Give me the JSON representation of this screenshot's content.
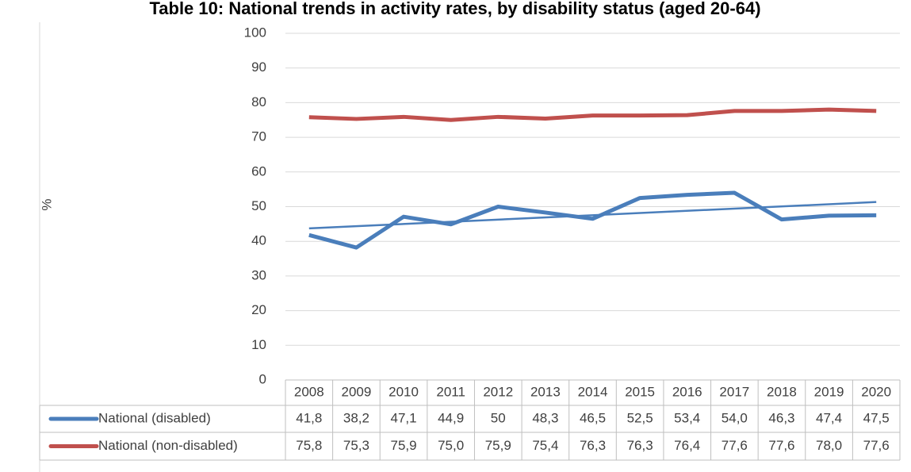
{
  "chart_data": {
    "type": "line",
    "title": "Table 10: National trends in activity rates, by disability status (aged 20-64)",
    "y_label": "%",
    "categories": [
      "2008",
      "2009",
      "2010",
      "2011",
      "2012",
      "2013",
      "2014",
      "2015",
      "2016",
      "2017",
      "2018",
      "2019",
      "2020"
    ],
    "series": [
      {
        "name": "National (disabled)",
        "color": "#4a7ebb",
        "trendline": true,
        "values": [
          41.8,
          38.2,
          47.1,
          44.9,
          50,
          48.3,
          46.5,
          52.5,
          53.4,
          54.0,
          46.3,
          47.4,
          47.5
        ],
        "value_labels": [
          "41,8",
          "38,2",
          "47,1",
          "44,9",
          "50",
          "48,3",
          "46,5",
          "52,5",
          "53,4",
          "54,0",
          "46,3",
          "47,4",
          "47,5"
        ]
      },
      {
        "name": "National (non-disabled)",
        "color": "#c0504d",
        "values": [
          75.8,
          75.3,
          75.9,
          75.0,
          75.9,
          75.4,
          76.3,
          76.3,
          76.4,
          77.6,
          77.6,
          78.0,
          77.6
        ],
        "value_labels": [
          "75,8",
          "75,3",
          "75,9",
          "75,0",
          "75,9",
          "75,4",
          "76,3",
          "76,3",
          "76,4",
          "77,6",
          "77,6",
          "78,0",
          "77,6"
        ]
      }
    ],
    "ylim": [
      0,
      100
    ],
    "yticks": [
      0,
      10,
      20,
      30,
      40,
      50,
      60,
      70,
      80,
      90,
      100
    ],
    "grid": true
  }
}
